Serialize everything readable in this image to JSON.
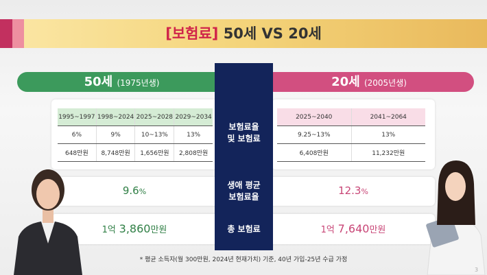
{
  "header": {
    "title_highlight": "[보험료]",
    "title_rest": "50세 VS 20세"
  },
  "left": {
    "age": "50세",
    "birth": "(1975년생)",
    "table": {
      "headers": [
        "1995~1997",
        "1998~2024",
        "2025~2028",
        "2029~2034"
      ],
      "rows": [
        [
          "6%",
          "9%",
          "10~13%",
          "13%"
        ],
        [
          "648만원",
          "8,748만원",
          "1,656만원",
          "2,808만원"
        ]
      ]
    },
    "avg_rate": {
      "number": "9.6",
      "unit": "%"
    },
    "total": {
      "prefix": "1억",
      "number": "3,860",
      "unit": "만원"
    }
  },
  "right": {
    "age": "20세",
    "birth": "(2005년생)",
    "table": {
      "headers": [
        "2025~2040",
        "2041~2064"
      ],
      "rows": [
        [
          "9.25~13%",
          "13%"
        ],
        [
          "6,408만원",
          "11,232만원"
        ]
      ]
    },
    "avg_rate": {
      "number": "12.3",
      "unit": "%"
    },
    "total": {
      "prefix": "1억",
      "number": "7,640",
      "unit": "만원"
    }
  },
  "center": {
    "labels": [
      "보험료율\n및 보험료",
      "생애 평균\n보험료율",
      "총 보험료"
    ]
  },
  "footnote": "* 평균 소득자(월 300만원, 2024년 현재가치) 기준, 40년 가입-25년 수급 가정",
  "page_number": "3"
}
